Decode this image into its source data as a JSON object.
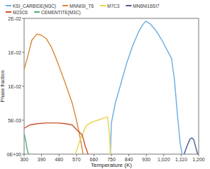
{
  "chart_data": {
    "type": "line",
    "x_label": "Temperature (K)",
    "y_label": "Phase fraction",
    "xlim": [
      300,
      1200
    ],
    "xticks": [
      300,
      390,
      480,
      570,
      660,
      750,
      840,
      930,
      {
        "value": 1020,
        "label": "1,020"
      },
      {
        "value": 1110,
        "label": "1,110"
      },
      {
        "value": 1200,
        "label": "1,200"
      }
    ],
    "ylim": [
      0,
      0.02
    ],
    "yticks": [
      {
        "value": 0,
        "label": "0E+00"
      },
      {
        "value": 0.005,
        "label": "5E-03"
      },
      {
        "value": 0.01,
        "label": "1E-02"
      },
      {
        "value": 0.015,
        "label": "1E-02"
      },
      {
        "value": 0.02,
        "label": "2E-02"
      }
    ],
    "grid": false,
    "legend": "top",
    "series": [
      {
        "name": "KSI_CARBIDE(M3C)",
        "color": "#6aaee0",
        "x": [
          745,
          750,
          770,
          800,
          830,
          860,
          890,
          910,
          927,
          950,
          980,
          1010,
          1040,
          1060,
          1075,
          1090,
          1105,
          1115
        ],
        "values": [
          0,
          0.0046,
          0.0075,
          0.0105,
          0.0135,
          0.016,
          0.018,
          0.019,
          0.0196,
          0.0192,
          0.0182,
          0.0168,
          0.0152,
          0.0141,
          0.011,
          0.006,
          0.0015,
          0
        ]
      },
      {
        "name": "MNNISI_T6",
        "color": "#d9893a",
        "x": [
          300,
          316,
          340,
          366,
          390,
          415,
          440,
          465,
          490,
          514,
          530,
          548,
          565,
          580,
          595,
          604
        ],
        "values": [
          0.0125,
          0.0141,
          0.0168,
          0.0177,
          0.0175,
          0.017,
          0.0158,
          0.0141,
          0.0122,
          0.0103,
          0.009,
          0.0075,
          0.0056,
          0.0037,
          0.0015,
          0
        ]
      },
      {
        "name": "M7C3",
        "color": "#e8d44a",
        "x": [
          564,
          590,
          620,
          647,
          680,
          710,
          730,
          740,
          745
        ],
        "values": [
          0,
          0.0022,
          0.0042,
          0.0047,
          0.005,
          0.0053,
          0.0055,
          0.003,
          0
        ]
      },
      {
        "name": "MN6NI16SI7",
        "color": "#4b5a96",
        "x": [
          1125,
          1140,
          1155,
          1165,
          1175,
          1185,
          1195
        ],
        "values": [
          0,
          0.0012,
          0.0022,
          0.0024,
          0.0021,
          0.001,
          0
        ]
      },
      {
        "name": "M23C6",
        "color": "#c9522b",
        "x": [
          300,
          330,
          370,
          420,
          470,
          510,
          548,
          575,
          600,
          615,
          630
        ],
        "values": [
          0.0038,
          0.0043,
          0.0045,
          0.0046,
          0.0046,
          0.0045,
          0.0043,
          0.0035,
          0.0028,
          0.0012,
          0
        ]
      },
      {
        "name": "CEMENTITE(M3C)",
        "color": "#4fae7a",
        "x": [
          300,
          308,
          315,
          322
        ],
        "values": [
          0.003,
          0.002,
          0.0008,
          0
        ]
      }
    ]
  }
}
